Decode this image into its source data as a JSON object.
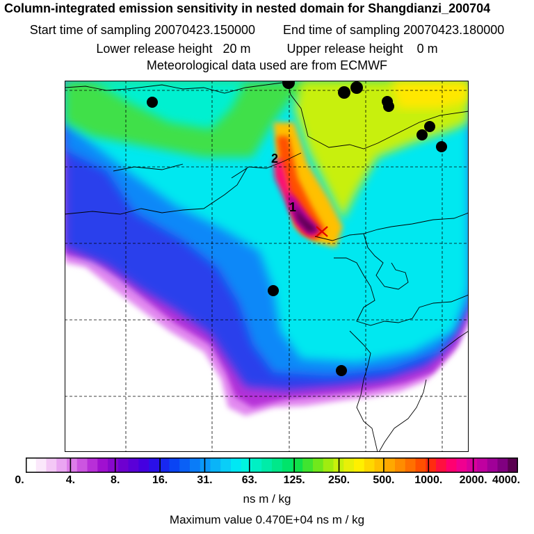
{
  "header": {
    "title": "Column-integrated emission sensitivity in nested domain for Shangdianzi_200704",
    "start_label": "Start time of sampling 20070423.150000",
    "end_label": "End time of sampling 20070423.180000",
    "lower_label": "Lower release height   20 m",
    "upper_label": "Upper release height    0 m",
    "met_label": "Meteorological data used are from ECMWF"
  },
  "map": {
    "labels": [
      "2",
      "1"
    ]
  },
  "colorbar": {
    "ticks": [
      "0.",
      "4.",
      "8.",
      "16.",
      "31.",
      "63.",
      "125.",
      "250.",
      "500.",
      "1000.",
      "2000.",
      "4000."
    ],
    "colors": [
      "#ffffff",
      "#fbe8fb",
      "#f4c8f6",
      "#eaa6f2",
      "#dd7de9",
      "#cc55e0",
      "#b82fd8",
      "#a010d0",
      "#8808cc",
      "#6e00d0",
      "#5a00d8",
      "#4400e0",
      "#2a10e8",
      "#1828f0",
      "#0a44f4",
      "#0a60f6",
      "#0a7cf8",
      "#0a98f8",
      "#0ab4f8",
      "#0acef8",
      "#00e8f4",
      "#00f4e0",
      "#00f0c4",
      "#00eca8",
      "#00e88a",
      "#00e46a",
      "#10e04a",
      "#40e430",
      "#70e81c",
      "#a0ec10",
      "#c8f00c",
      "#e8f008",
      "#fff000",
      "#ffd800",
      "#ffc000",
      "#ffa800",
      "#ff8c00",
      "#ff7000",
      "#ff5000",
      "#ff2c10",
      "#ff1040",
      "#ff0070",
      "#f00090",
      "#d8009c",
      "#c000a0",
      "#a00098",
      "#800080",
      "#5a0050"
    ],
    "units": "ns m / kg",
    "max_label": "Maximum value  0.470E+04 ns m / kg"
  }
}
